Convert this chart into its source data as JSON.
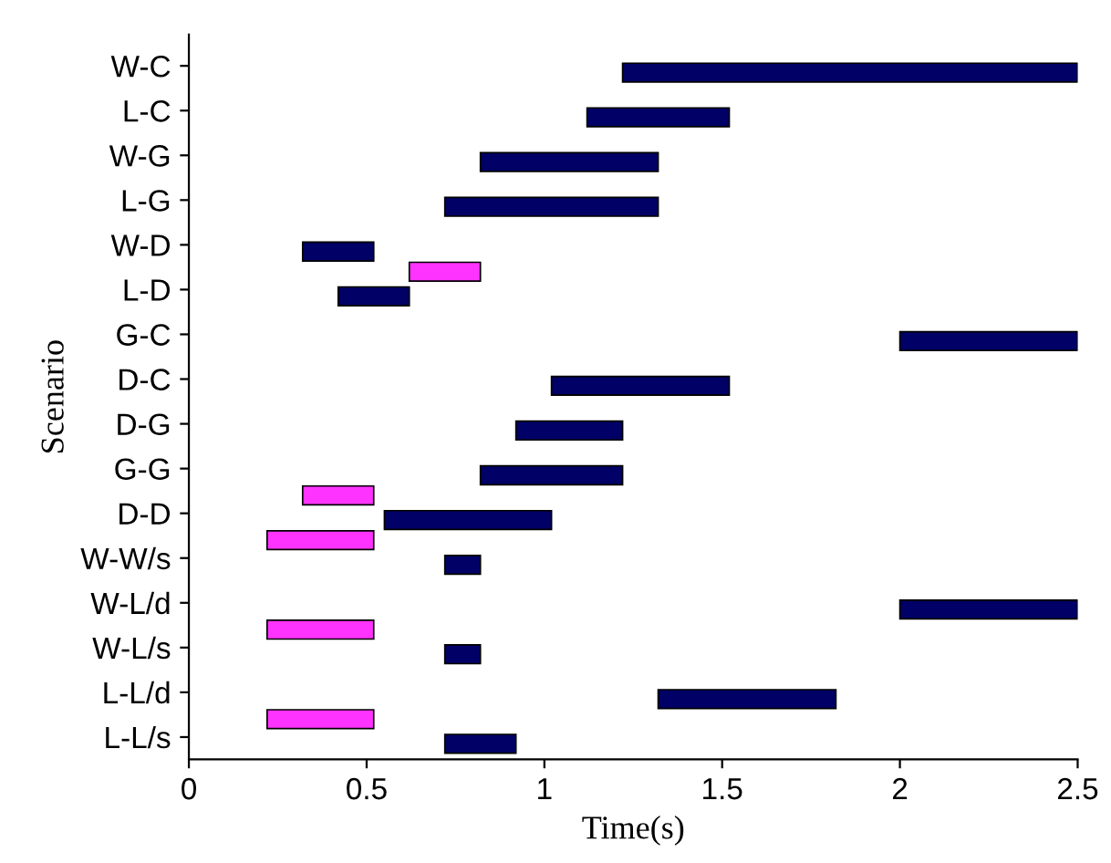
{
  "chart_data": {
    "type": "bar",
    "orientation": "horizontal",
    "xlabel": "Time(s)",
    "ylabel": "Scenario",
    "categories": [
      "W-C",
      "L-C",
      "W-G",
      "L-G",
      "W-D",
      "L-D",
      "G-C",
      "D-C",
      "D-G",
      "G-G",
      "D-D",
      "W-W/s",
      "W-L/d",
      "W-L/s",
      "L-L/d",
      "L-L/s"
    ],
    "series": [
      {
        "color": "#000066",
        "base": [
          1.22,
          1.12,
          0.82,
          0.72,
          0.32,
          0.42,
          2.0,
          1.02,
          0.92,
          0.82,
          0.55,
          0.72,
          2.0,
          0.72,
          1.32,
          0.72
        ],
        "values": [
          1.28,
          0.4,
          0.5,
          0.6,
          0.2,
          0.2,
          0.5,
          0.5,
          0.3,
          0.4,
          0.47,
          0.1,
          0.5,
          0.1,
          0.5,
          0.2
        ]
      },
      {
        "color": "#ff33ff",
        "base": [
          null,
          null,
          null,
          null,
          null,
          0.62,
          null,
          null,
          null,
          null,
          0.32,
          0.22,
          null,
          0.22,
          null,
          0.22
        ],
        "values": [
          null,
          null,
          null,
          null,
          null,
          0.2,
          null,
          null,
          null,
          null,
          0.2,
          0.3,
          null,
          0.3,
          null,
          0.3
        ]
      }
    ],
    "xlim": [
      0,
      2.5
    ],
    "xticks": [
      0,
      0.5,
      1,
      1.5,
      2,
      2.5
    ],
    "grid": false,
    "legend": false
  }
}
